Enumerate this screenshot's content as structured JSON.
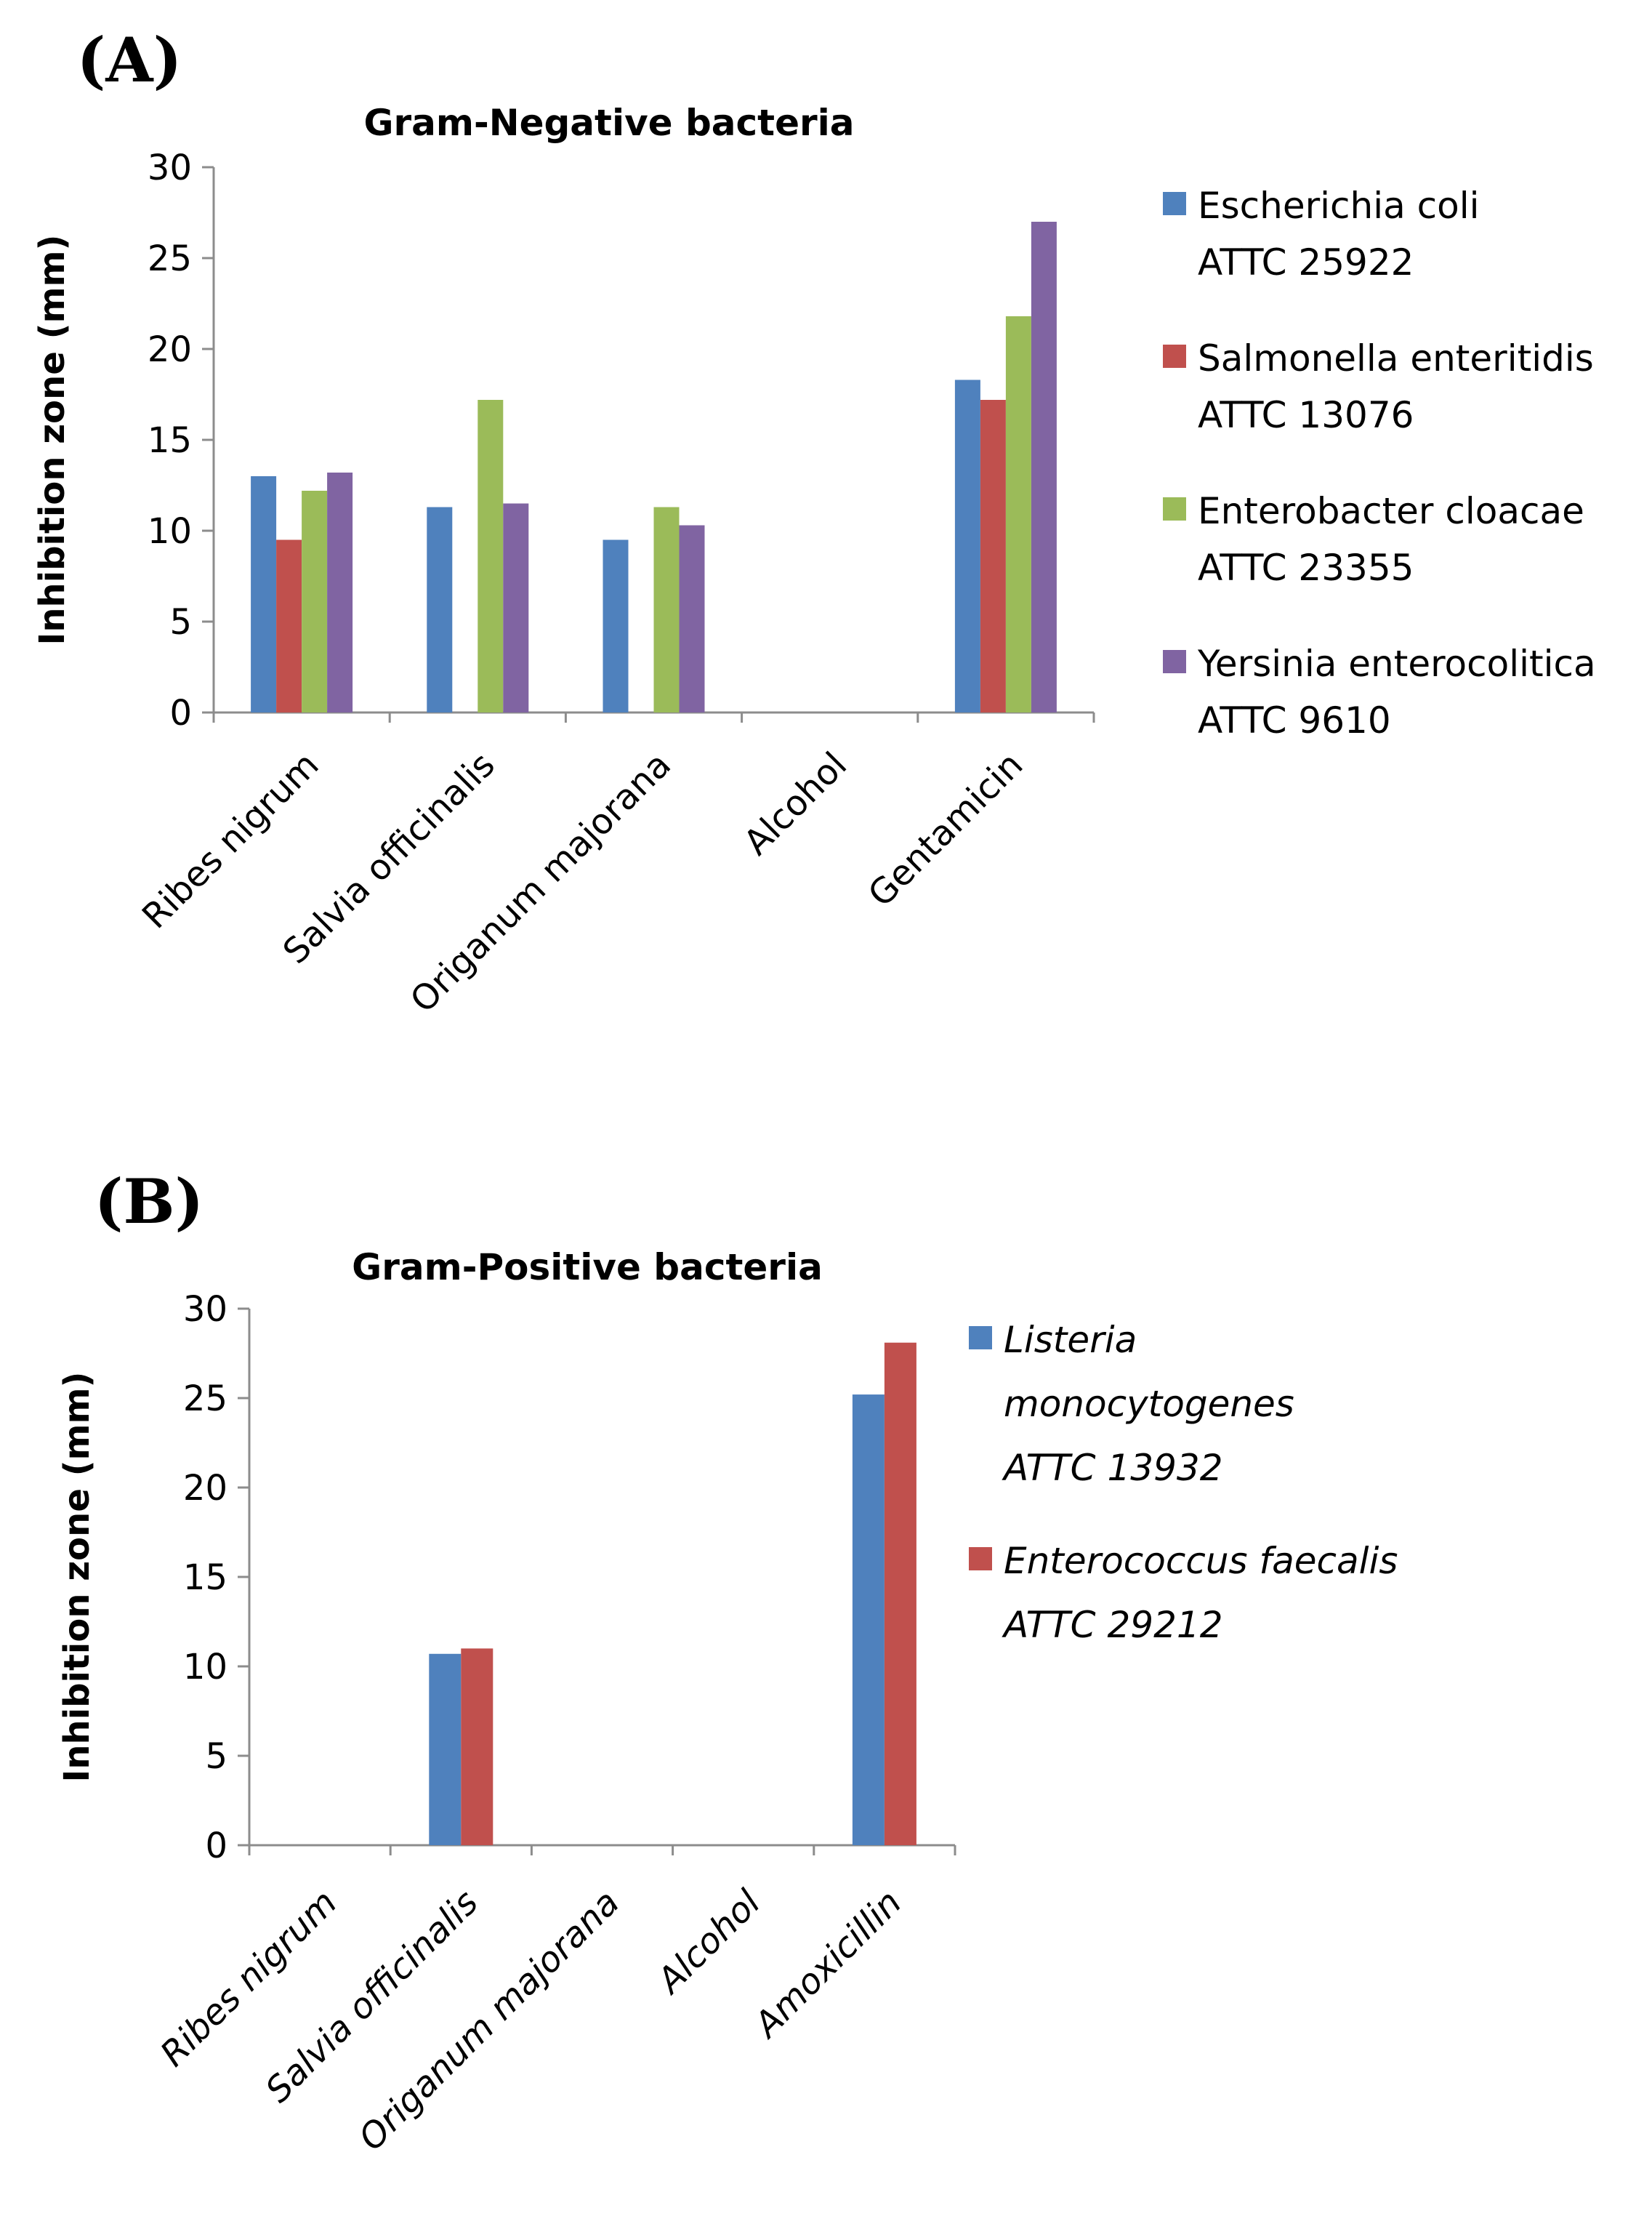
{
  "chart_data": [
    {
      "panel_label": "(A)",
      "type": "bar",
      "title": "Gram-Negative bacteria",
      "xlabel": "",
      "ylabel": "Inhibition zone (mm)",
      "ylim": [
        0,
        30
      ],
      "yticks": [
        "0",
        "5",
        "10",
        "15",
        "20",
        "25",
        "30"
      ],
      "categories": [
        "Ribes nigrum",
        "Salvia officinalis",
        "Origanum majorana",
        "Alcohol",
        "Gentamicin"
      ],
      "legend_italic": false,
      "series": [
        {
          "name_line1": "Escherichia coli",
          "name_line2": "ATTC 25922",
          "color": "#4f81bd",
          "values": [
            13.0,
            11.3,
            9.5,
            0,
            18.3
          ]
        },
        {
          "name_line1": "Salmonella enteritidis",
          "name_line2": "ATTC 13076",
          "color": "#c0504d",
          "values": [
            9.5,
            0,
            0,
            0,
            17.2
          ]
        },
        {
          "name_line1": "Enterobacter cloacae",
          "name_line2": "ATTC 23355",
          "color": "#9bbb59",
          "values": [
            12.2,
            17.2,
            11.3,
            0,
            21.8
          ]
        },
        {
          "name_line1": "Yersinia enterocolitica",
          "name_line2": "ATTC 9610",
          "color": "#8064a2",
          "values": [
            13.2,
            11.5,
            10.3,
            0,
            27.0
          ]
        }
      ]
    },
    {
      "panel_label": "(B)",
      "type": "bar",
      "title": "Gram-Positive bacteria",
      "xlabel": "",
      "ylabel": "Inhibition zone (mm)",
      "ylim": [
        0,
        30
      ],
      "yticks": [
        "0",
        "5",
        "10",
        "15",
        "20",
        "25",
        "30"
      ],
      "categories": [
        "Ribes nigrum",
        "Salvia officinalis",
        "Origanum majorana",
        "Alcohol",
        "Amoxicillin"
      ],
      "legend_italic": true,
      "series": [
        {
          "name_line1": "Listeria",
          "name_line2": "monocytogenes",
          "name_line3": "ATTC 13932",
          "color": "#4f81bd",
          "values": [
            0,
            10.7,
            0,
            0,
            25.2
          ]
        },
        {
          "name_line1": "Enterococcus faecalis",
          "name_line2": "ATTC  29212",
          "color": "#c0504d",
          "values": [
            0,
            11.0,
            0,
            0,
            28.1
          ]
        }
      ]
    }
  ]
}
